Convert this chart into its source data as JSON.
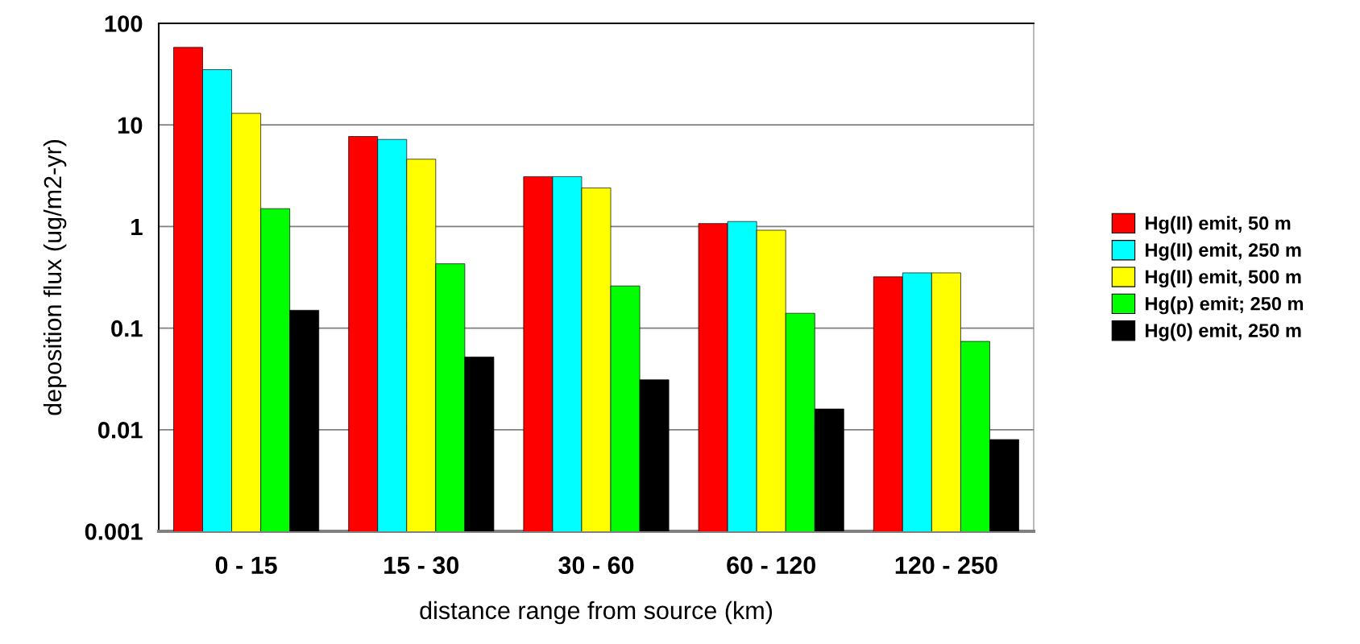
{
  "chart_data": {
    "type": "bar",
    "xlabel": "distance range from source (km)",
    "ylabel": "deposition flux (ug/m2-yr)",
    "categories": [
      "0 - 15",
      "15 - 30",
      "30 - 60",
      "60 - 120",
      "120 - 250"
    ],
    "series": [
      {
        "name": "Hg(II) emit, 50 m",
        "color": "#ff0000",
        "values": [
          58,
          7.7,
          3.1,
          1.07,
          0.32
        ]
      },
      {
        "name": "Hg(II) emit, 250 m",
        "color": "#00ffff",
        "values": [
          35,
          7.2,
          3.1,
          1.12,
          0.35
        ]
      },
      {
        "name": "Hg(II) emit, 500 m",
        "color": "#ffff00",
        "values": [
          13,
          4.6,
          2.4,
          0.92,
          0.35
        ]
      },
      {
        "name": "Hg(p) emit; 250 m",
        "color": "#00ff00",
        "values": [
          1.5,
          0.43,
          0.26,
          0.14,
          0.074
        ]
      },
      {
        "name": "Hg(0) emit, 250 m",
        "color": "#000000",
        "values": [
          0.15,
          0.052,
          0.031,
          0.016,
          0.008
        ]
      }
    ],
    "log": "y",
    "ylim": [
      0.001,
      100
    ],
    "yticks": [
      0.001,
      0.01,
      0.1,
      1,
      10,
      100
    ],
    "grid": "y",
    "legend": "right"
  }
}
